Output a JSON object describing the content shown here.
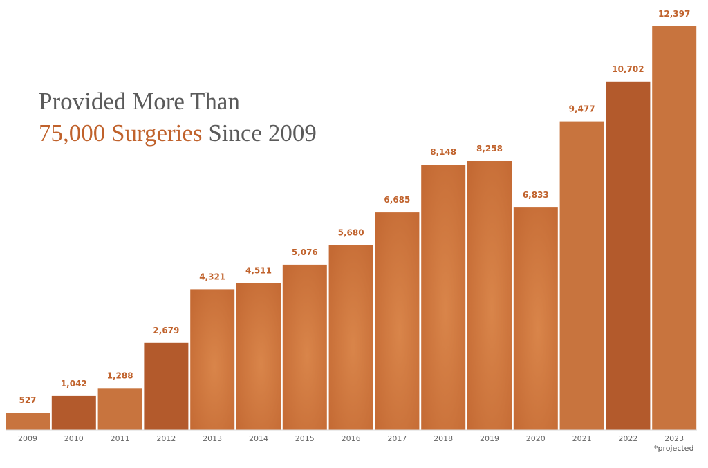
{
  "headline": {
    "line1": "Provided More Than",
    "line2_accent": "75,000 Surgeries",
    "line2_rest": " Since 2009"
  },
  "footnote": "*projected",
  "colors": {
    "bar": "#c8743e",
    "bar_dark": "#b35a2c",
    "value_label": "#c0622c",
    "title_gray": "#5a5a5a"
  },
  "chart_data": {
    "type": "bar",
    "title": "Provided More Than 75,000 Surgeries Since 2009",
    "categories": [
      "2009",
      "2010",
      "2011",
      "2012",
      "2013",
      "2014",
      "2015",
      "2016",
      "2017",
      "2018",
      "2019",
      "2020",
      "2021",
      "2022",
      "2023"
    ],
    "values": [
      527,
      1042,
      1288,
      2679,
      4321,
      4511,
      5076,
      5680,
      6685,
      8148,
      8258,
      6833,
      9477,
      10702,
      12397
    ],
    "value_labels": [
      "527",
      "1,042",
      "1,288",
      "2,679",
      "4,321",
      "4,511",
      "5,076",
      "5,680",
      "6,685",
      "8,148",
      "8,258",
      "6,833",
      "9,477",
      "10,702",
      "12,397"
    ],
    "xlabel": "",
    "ylabel": "",
    "ylim": [
      0,
      12397
    ],
    "grid": false,
    "legend": "none",
    "notes": "2023 value is projected"
  }
}
